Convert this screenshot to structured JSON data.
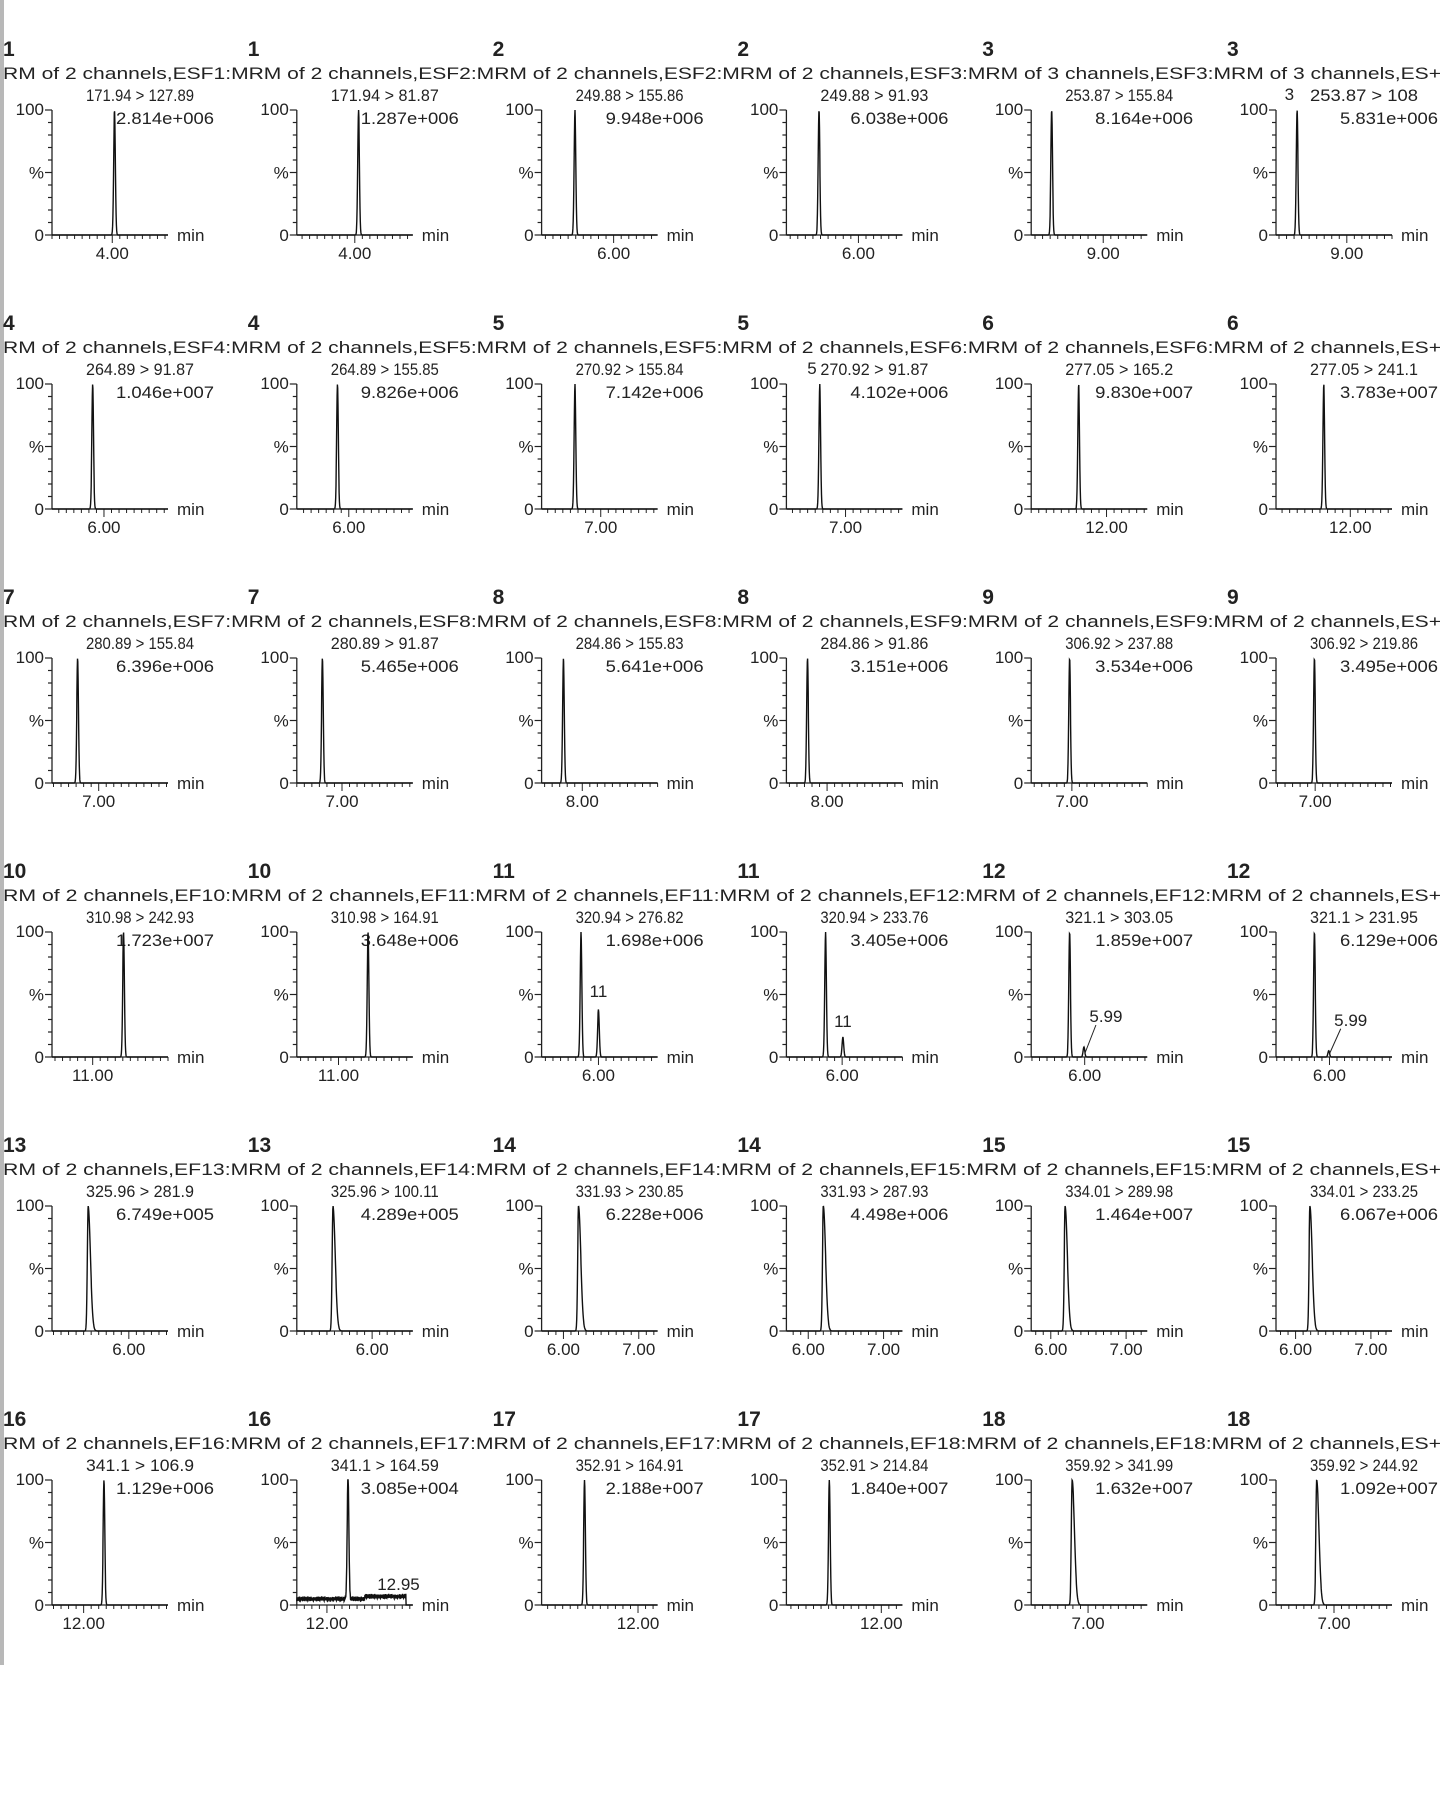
{
  "axis_labels": {
    "y_top": "100",
    "y_mid": "%",
    "y_zero": "0",
    "x_unit": "min"
  },
  "rows": [
    {
      "header": "RM of 2 channels,ESF1:MRM of 2 channels,ESF2:MRM of 2 channels,ESF2:MRM of 2 channels,ESF3:MRM of 3 channels,ESF3:MRM of 3 channels,ES+"
    },
    {
      "header": "RM of 2 channels,ESF4:MRM of 2 channels,ESF5:MRM of 2 channels,ESF5:MRM of 2 channels,ESF6:MRM of 2 channels,ESF6:MRM of 2 channels,ES+"
    },
    {
      "header": "RM of 2 channels,ESF7:MRM of 2 channels,ESF8:MRM of 2 channels,ESF8:MRM of 2 channels,ESF9:MRM of 2 channels,ESF9:MRM of 2 channels,ES+"
    },
    {
      "header": "RM of 2 channels,EF10:MRM of 2 channels,EF11:MRM of 2 channels,EF11:MRM of 2 channels,EF12:MRM of 2 channels,EF12:MRM of 2 channels,ES+"
    },
    {
      "header": "RM of 2 channels,EF13:MRM of 2 channels,EF14:MRM of 2 channels,EF14:MRM of 2 channels,EF15:MRM of 2 channels,EF15:MRM of 2 channels,ES+"
    },
    {
      "header": "RM of 2 channels,EF16:MRM of 2 channels,EF17:MRM of 2 channels,EF17:MRM of 2 channels,EF18:MRM of 2 channels,EF18:MRM of 2 channels,ES+"
    }
  ],
  "chart_data": [
    {
      "type": "line",
      "compound": "1",
      "transition": "171.94 > 127.89",
      "intensity": "2.814e+006",
      "xlim": [
        3.2,
        4.74
      ],
      "ylim": [
        0,
        100
      ],
      "x_ticks": [
        4.0
      ],
      "x_tick_labels": [
        "4.00"
      ],
      "peaks": [
        {
          "rt": 4.03,
          "height": 100
        }
      ],
      "annotations": []
    },
    {
      "type": "line",
      "compound": "1",
      "transition": "171.94 > 81.87",
      "intensity": "1.287e+006",
      "xlim": [
        3.23,
        4.77
      ],
      "ylim": [
        0,
        100
      ],
      "x_ticks": [
        4.0
      ],
      "x_tick_labels": [
        "4.00"
      ],
      "peaks": [
        {
          "rt": 4.05,
          "height": 100
        }
      ],
      "annotations": []
    },
    {
      "type": "line",
      "compound": "2",
      "transition": "249.88 > 155.86",
      "intensity": "9.948e+006",
      "xlim": [
        5.05,
        6.58
      ],
      "ylim": [
        0,
        100
      ],
      "x_ticks": [
        6.0
      ],
      "x_tick_labels": [
        "6.00"
      ],
      "peaks": [
        {
          "rt": 5.49,
          "height": 100
        }
      ],
      "annotations": []
    },
    {
      "type": "line",
      "compound": "2",
      "transition": "249.88 > 91.93",
      "intensity": "6.038e+006",
      "xlim": [
        5.05,
        6.58
      ],
      "ylim": [
        0,
        100
      ],
      "x_ticks": [
        6.0
      ],
      "x_tick_labels": [
        "6.00"
      ],
      "peaks": [
        {
          "rt": 5.48,
          "height": 100
        }
      ],
      "annotations": []
    },
    {
      "type": "line",
      "compound": "3",
      "transition": "253.87 > 155.84",
      "intensity": "8.164e+006",
      "xlim": [
        8.05,
        9.58
      ],
      "ylim": [
        0,
        100
      ],
      "x_ticks": [
        9.0
      ],
      "x_tick_labels": [
        "9.00"
      ],
      "peaks": [
        {
          "rt": 8.32,
          "height": 100
        }
      ],
      "annotations": []
    },
    {
      "type": "line",
      "compound": "3",
      "transition": "253.87 > 108",
      "intensity": "5.831e+006",
      "xlim": [
        8.06,
        9.6
      ],
      "ylim": [
        0,
        100
      ],
      "x_ticks": [
        9.0
      ],
      "x_tick_labels": [
        "9.00"
      ],
      "peaks": [
        {
          "rt": 8.34,
          "height": 100
        }
      ],
      "annotations": [
        {
          "text": "3",
          "rt": 8.34,
          "level": 100
        }
      ]
    },
    {
      "type": "line",
      "compound": "4",
      "transition": "264.89 > 91.87",
      "intensity": "1.046e+007",
      "xlim": [
        5.31,
        6.85
      ],
      "ylim": [
        0,
        100
      ],
      "x_ticks": [
        6.0
      ],
      "x_tick_labels": [
        "6.00"
      ],
      "peaks": [
        {
          "rt": 5.85,
          "height": 100
        }
      ],
      "annotations": []
    },
    {
      "type": "line",
      "compound": "4",
      "transition": "264.89 > 155.85",
      "intensity": "9.826e+006",
      "xlim": [
        5.31,
        6.85
      ],
      "ylim": [
        0,
        100
      ],
      "x_ticks": [
        6.0
      ],
      "x_tick_labels": [
        "6.00"
      ],
      "peaks": [
        {
          "rt": 5.85,
          "height": 100
        }
      ],
      "annotations": []
    },
    {
      "type": "line",
      "compound": "5",
      "transition": "270.92 > 155.84",
      "intensity": "7.142e+006",
      "xlim": [
        6.22,
        7.75
      ],
      "ylim": [
        0,
        100
      ],
      "x_ticks": [
        7.0
      ],
      "x_tick_labels": [
        "7.00"
      ],
      "peaks": [
        {
          "rt": 6.66,
          "height": 100
        }
      ],
      "annotations": []
    },
    {
      "type": "line",
      "compound": "5",
      "transition": "270.92 > 91.87",
      "intensity": "4.102e+006",
      "xlim": [
        6.22,
        7.75
      ],
      "ylim": [
        0,
        100
      ],
      "x_ticks": [
        7.0
      ],
      "x_tick_labels": [
        "7.00"
      ],
      "peaks": [
        {
          "rt": 6.66,
          "height": 100
        }
      ],
      "annotations": [
        {
          "text": "5",
          "rt": 6.66,
          "level": 100
        }
      ]
    },
    {
      "type": "line",
      "compound": "6",
      "transition": "277.05 > 165.2",
      "intensity": "9.830e+007",
      "xlim": [
        11.0,
        12.54
      ],
      "ylim": [
        0,
        100
      ],
      "x_ticks": [
        12.0
      ],
      "x_tick_labels": [
        "12.00"
      ],
      "peaks": [
        {
          "rt": 11.63,
          "height": 100
        }
      ],
      "annotations": []
    },
    {
      "type": "line",
      "compound": "6",
      "transition": "277.05 > 241.1",
      "intensity": "3.783e+007",
      "xlim": [
        11.02,
        12.55
      ],
      "ylim": [
        0,
        100
      ],
      "x_ticks": [
        12.0
      ],
      "x_tick_labels": [
        "12.00"
      ],
      "peaks": [
        {
          "rt": 11.65,
          "height": 100
        }
      ],
      "annotations": []
    },
    {
      "type": "line",
      "compound": "7",
      "transition": "280.89 > 155.84",
      "intensity": "6.396e+006",
      "xlim": [
        6.38,
        7.92
      ],
      "ylim": [
        0,
        100
      ],
      "x_ticks": [
        7.0
      ],
      "x_tick_labels": [
        "7.00"
      ],
      "peaks": [
        {
          "rt": 6.72,
          "height": 100
        }
      ],
      "annotations": []
    },
    {
      "type": "line",
      "compound": "7",
      "transition": "280.89 > 91.87",
      "intensity": "5.465e+006",
      "xlim": [
        6.4,
        7.94
      ],
      "ylim": [
        0,
        100
      ],
      "x_ticks": [
        7.0
      ],
      "x_tick_labels": [
        "7.00"
      ],
      "peaks": [
        {
          "rt": 6.74,
          "height": 100
        }
      ],
      "annotations": []
    },
    {
      "type": "line",
      "compound": "8",
      "transition": "284.86 > 155.83",
      "intensity": "5.641e+006",
      "xlim": [
        7.46,
        9.0
      ],
      "ylim": [
        0,
        100
      ],
      "x_ticks": [
        8.0
      ],
      "x_tick_labels": [
        "8.00"
      ],
      "peaks": [
        {
          "rt": 7.75,
          "height": 100
        }
      ],
      "annotations": []
    },
    {
      "type": "line",
      "compound": "8",
      "transition": "284.86 > 91.86",
      "intensity": "3.151e+006",
      "xlim": [
        7.46,
        9.0
      ],
      "ylim": [
        0,
        100
      ],
      "x_ticks": [
        8.0
      ],
      "x_tick_labels": [
        "8.00"
      ],
      "peaks": [
        {
          "rt": 7.74,
          "height": 100
        }
      ],
      "annotations": []
    },
    {
      "type": "line",
      "compound": "9",
      "transition": "306.92 > 237.88",
      "intensity": "3.534e+006",
      "xlim": [
        6.46,
        8.0
      ],
      "ylim": [
        0,
        100
      ],
      "x_ticks": [
        7.0
      ],
      "x_tick_labels": [
        "7.00"
      ],
      "peaks": [
        {
          "rt": 6.97,
          "height": 100
        }
      ],
      "annotations": []
    },
    {
      "type": "line",
      "compound": "9",
      "transition": "306.92 > 219.86",
      "intensity": "3.495e+006",
      "xlim": [
        6.48,
        8.02
      ],
      "ylim": [
        0,
        100
      ],
      "x_ticks": [
        7.0
      ],
      "x_tick_labels": [
        "7.00"
      ],
      "peaks": [
        {
          "rt": 6.99,
          "height": 100
        }
      ],
      "annotations": []
    },
    {
      "type": "line",
      "compound": "10",
      "transition": "310.98 > 242.93",
      "intensity": "1.723e+007",
      "xlim": [
        10.46,
        12.0
      ],
      "ylim": [
        0,
        100
      ],
      "x_ticks": [
        11.0
      ],
      "x_tick_labels": [
        "11.00"
      ],
      "peaks": [
        {
          "rt": 11.41,
          "height": 100
        }
      ],
      "annotations": []
    },
    {
      "type": "line",
      "compound": "10",
      "transition": "310.98 > 164.91",
      "intensity": "3.648e+006",
      "xlim": [
        10.45,
        11.98
      ],
      "ylim": [
        0,
        100
      ],
      "x_ticks": [
        11.0
      ],
      "x_tick_labels": [
        "11.00"
      ],
      "peaks": [
        {
          "rt": 11.39,
          "height": 100
        }
      ],
      "annotations": []
    },
    {
      "type": "line",
      "compound": "11",
      "transition": "320.94 > 276.82",
      "intensity": "1.698e+006",
      "xlim": [
        5.25,
        6.78
      ],
      "ylim": [
        0,
        100
      ],
      "x_ticks": [
        6.0
      ],
      "x_tick_labels": [
        "6.00"
      ],
      "peaks": [
        {
          "rt": 5.77,
          "height": 100
        },
        {
          "rt": 6.0,
          "height": 38
        }
      ],
      "annotations": [
        {
          "text": "11",
          "rt": 6.0,
          "level": 48
        }
      ]
    },
    {
      "type": "line",
      "compound": "11",
      "transition": "320.94 > 233.76",
      "intensity": "3.405e+006",
      "xlim": [
        5.26,
        6.8
      ],
      "ylim": [
        0,
        100
      ],
      "x_ticks": [
        6.0
      ],
      "x_tick_labels": [
        "6.00"
      ],
      "peaks": [
        {
          "rt": 5.78,
          "height": 100
        },
        {
          "rt": 6.01,
          "height": 16
        }
      ],
      "annotations": [
        {
          "text": "11",
          "rt": 6.01,
          "level": 24
        }
      ]
    },
    {
      "type": "line",
      "compound": "12",
      "transition": "321.1 > 303.05",
      "intensity": "1.859e+007",
      "xlim": [
        5.29,
        6.83
      ],
      "ylim": [
        0,
        100
      ],
      "x_ticks": [
        6.0
      ],
      "x_tick_labels": [
        "6.00"
      ],
      "peaks": [
        {
          "rt": 5.8,
          "height": 100
        },
        {
          "rt": 5.99,
          "height": 8
        }
      ],
      "annotations": [
        {
          "text": "5.99",
          "rt": 5.99,
          "level": 28,
          "leader": true
        }
      ]
    },
    {
      "type": "line",
      "compound": "12",
      "transition": "321.1 > 231.95",
      "intensity": "6.129e+006",
      "xlim": [
        5.29,
        6.83
      ],
      "ylim": [
        0,
        100
      ],
      "x_ticks": [
        6.0
      ],
      "x_tick_labels": [
        "6.00"
      ],
      "peaks": [
        {
          "rt": 5.8,
          "height": 100
        },
        {
          "rt": 5.99,
          "height": 5
        }
      ],
      "annotations": [
        {
          "text": "5.99",
          "rt": 5.99,
          "level": 25,
          "leader": true
        }
      ]
    },
    {
      "type": "line",
      "compound": "13",
      "transition": "325.96 > 281.9",
      "intensity": "6.749e+005",
      "xlim": [
        4.98,
        6.52
      ],
      "ylim": [
        0,
        100
      ],
      "x_ticks": [
        6.0
      ],
      "x_tick_labels": [
        "6.00"
      ],
      "peaks": [
        {
          "rt": 5.46,
          "height": 100,
          "tail": true
        }
      ],
      "annotations": []
    },
    {
      "type": "line",
      "compound": "13",
      "transition": "325.96 > 100.11",
      "intensity": "4.289e+005",
      "xlim": [
        5.0,
        6.54
      ],
      "ylim": [
        0,
        100
      ],
      "x_ticks": [
        6.0
      ],
      "x_tick_labels": [
        "6.00"
      ],
      "peaks": [
        {
          "rt": 5.48,
          "height": 100,
          "tail": true
        }
      ],
      "annotations": []
    },
    {
      "type": "line",
      "compound": "14",
      "transition": "331.93 > 230.85",
      "intensity": "6.228e+006",
      "xlim": [
        5.71,
        7.25
      ],
      "ylim": [
        0,
        100
      ],
      "x_ticks": [
        6.0,
        7.0
      ],
      "x_tick_labels": [
        "6.00",
        "7.00"
      ],
      "peaks": [
        {
          "rt": 6.2,
          "height": 100,
          "tail": true
        }
      ],
      "annotations": []
    },
    {
      "type": "line",
      "compound": "14",
      "transition": "331.93 > 287.93",
      "intensity": "4.498e+006",
      "xlim": [
        5.71,
        7.25
      ],
      "ylim": [
        0,
        100
      ],
      "x_ticks": [
        6.0,
        7.0
      ],
      "x_tick_labels": [
        "6.00",
        "7.00"
      ],
      "peaks": [
        {
          "rt": 6.2,
          "height": 100,
          "tail": true
        }
      ],
      "annotations": []
    },
    {
      "type": "line",
      "compound": "15",
      "transition": "334.01 > 289.98",
      "intensity": "1.464e+007",
      "xlim": [
        5.74,
        7.28
      ],
      "ylim": [
        0,
        100
      ],
      "x_ticks": [
        6.0,
        7.0
      ],
      "x_tick_labels": [
        "6.00",
        "7.00"
      ],
      "peaks": [
        {
          "rt": 6.19,
          "height": 100,
          "tail": true
        }
      ],
      "annotations": []
    },
    {
      "type": "line",
      "compound": "15",
      "transition": "334.01 > 233.25",
      "intensity": "6.067e+006",
      "xlim": [
        5.74,
        7.28
      ],
      "ylim": [
        0,
        100
      ],
      "x_ticks": [
        6.0,
        7.0
      ],
      "x_tick_labels": [
        "6.00",
        "7.00"
      ],
      "peaks": [
        {
          "rt": 6.19,
          "height": 100,
          "tail": true
        }
      ],
      "annotations": []
    },
    {
      "type": "line",
      "compound": "16",
      "transition": "341.1 > 106.9",
      "intensity": "1.129e+006",
      "xlim": [
        11.58,
        13.12
      ],
      "ylim": [
        0,
        100
      ],
      "x_ticks": [
        12.0
      ],
      "x_tick_labels": [
        "12.00"
      ],
      "peaks": [
        {
          "rt": 12.27,
          "height": 100
        }
      ],
      "annotations": []
    },
    {
      "type": "line",
      "compound": "16",
      "transition": "341.1 > 164.59",
      "intensity": "3.085e+004",
      "xlim": [
        11.6,
        13.14
      ],
      "ylim": [
        0,
        100
      ],
      "x_ticks": [
        12.0
      ],
      "x_tick_labels": [
        "12.00"
      ],
      "peaks": [
        {
          "rt": 12.28,
          "height": 100
        }
      ],
      "noise": true,
      "annotations": [
        {
          "text": "12.95",
          "rt": 12.95,
          "level": 12
        }
      ]
    },
    {
      "type": "line",
      "compound": "17",
      "transition": "352.91 > 164.91",
      "intensity": "2.188e+007",
      "xlim": [
        10.72,
        12.26
      ],
      "ylim": [
        0,
        100
      ],
      "x_ticks": [
        12.0
      ],
      "x_tick_labels": [
        "12.00"
      ],
      "peaks": [
        {
          "rt": 11.29,
          "height": 100
        }
      ],
      "annotations": []
    },
    {
      "type": "line",
      "compound": "17",
      "transition": "352.91 > 214.84",
      "intensity": "1.840e+007",
      "xlim": [
        10.74,
        12.28
      ],
      "ylim": [
        0,
        100
      ],
      "x_ticks": [
        12.0
      ],
      "x_tick_labels": [
        "12.00"
      ],
      "peaks": [
        {
          "rt": 11.31,
          "height": 100
        }
      ],
      "annotations": []
    },
    {
      "type": "line",
      "compound": "18",
      "transition": "359.92 > 341.99",
      "intensity": "1.632e+007",
      "xlim": [
        6.25,
        7.78
      ],
      "ylim": [
        0,
        100
      ],
      "x_ticks": [
        7.0
      ],
      "x_tick_labels": [
        "7.00"
      ],
      "peaks": [
        {
          "rt": 6.79,
          "height": 100,
          "tail": true
        }
      ],
      "annotations": []
    },
    {
      "type": "line",
      "compound": "18",
      "transition": "359.92 > 244.92",
      "intensity": "1.092e+007",
      "xlim": [
        6.23,
        7.77
      ],
      "ylim": [
        0,
        100
      ],
      "x_ticks": [
        7.0
      ],
      "x_tick_labels": [
        "7.00"
      ],
      "peaks": [
        {
          "rt": 6.77,
          "height": 100,
          "tail": true
        }
      ],
      "annotations": []
    }
  ]
}
